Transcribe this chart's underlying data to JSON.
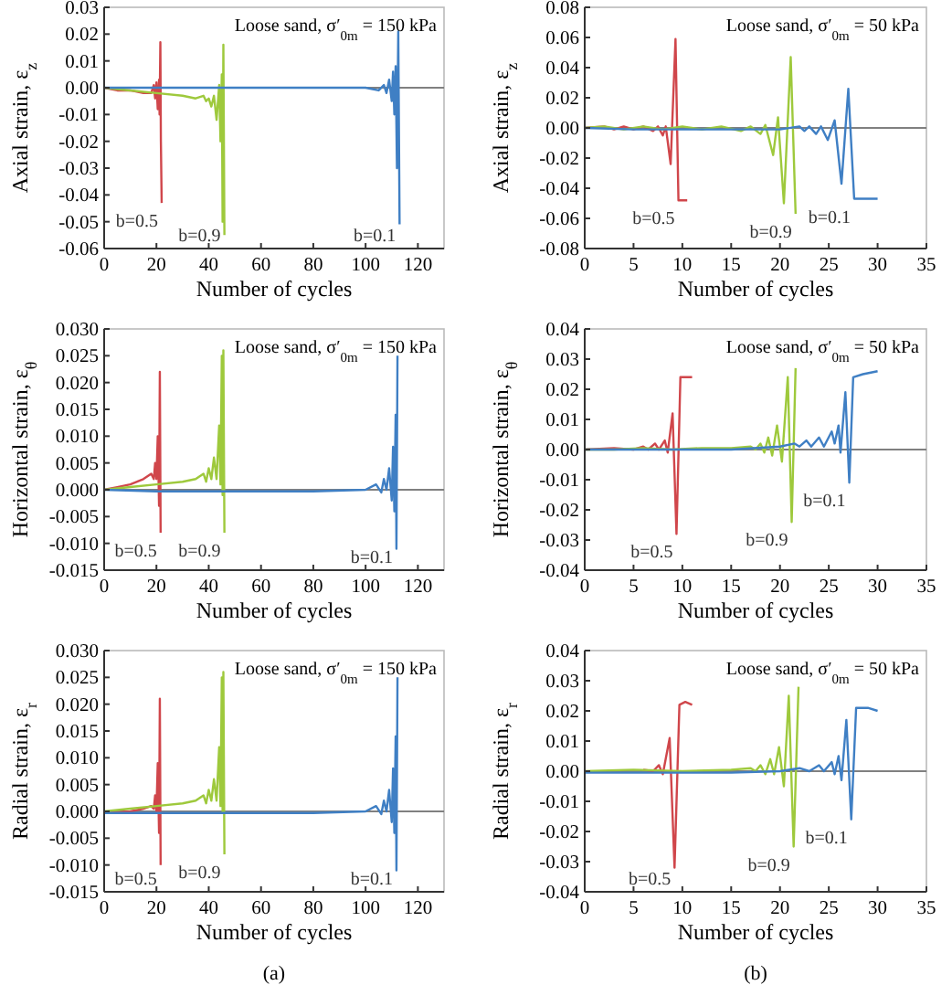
{
  "chart_data": [
    {
      "type": "line",
      "ylabel": "Axial strain, ε$_{z}$",
      "xlabel": "Number of cycles",
      "annotations": [
        "Loose sand, σ′$_{0m}$ = 150 kPa"
      ],
      "xlim": [
        0,
        130
      ],
      "xticks": [
        0,
        20,
        40,
        60,
        80,
        100,
        120
      ],
      "ylim": [
        -0.06,
        0.03
      ],
      "yticks": [
        {
          "value": -0.06,
          "label": "-0.06"
        },
        {
          "value": -0.05,
          "label": "-0.05"
        },
        {
          "value": -0.04,
          "label": "-0.04"
        },
        {
          "value": -0.03,
          "label": "-0.03"
        },
        {
          "value": -0.02,
          "label": "-0.02"
        },
        {
          "value": -0.01,
          "label": "-0.01"
        },
        {
          "value": 0,
          "label": "0.00"
        },
        {
          "value": 0.01,
          "label": "0.01"
        },
        {
          "value": 0.02,
          "label": "0.02"
        },
        {
          "value": 0.03,
          "label": "0.03"
        }
      ],
      "ref_lines": [
        {
          "axis": "y",
          "value": 0,
          "color": "#808080"
        }
      ],
      "grid": false,
      "legend": false,
      "series": [
        {
          "name": "b=0.5",
          "color": "#d0464b",
          "x": [
            0,
            5,
            10,
            15,
            18,
            19,
            19.5,
            20,
            20.5,
            21,
            21.2,
            21.5,
            21.7,
            22
          ],
          "values": [
            0,
            -0.001,
            -0.001,
            -0.002,
            -0.002,
            0.001,
            -0.004,
            0.002,
            -0.008,
            0.003,
            -0.01,
            0.017,
            -0.02,
            -0.043
          ]
        },
        {
          "name": "b=0.9",
          "color": "#9ec93c",
          "x": [
            0,
            10,
            20,
            30,
            35,
            38,
            39,
            40,
            41,
            42,
            43,
            44,
            44.5,
            45,
            45.3,
            45.6,
            46
          ],
          "values": [
            0,
            -0.001,
            -0.002,
            -0.003,
            -0.004,
            -0.003,
            -0.005,
            -0.004,
            -0.007,
            -0.003,
            -0.012,
            0.001,
            -0.02,
            0.005,
            -0.05,
            0.016,
            -0.055
          ]
        },
        {
          "name": "b=0.1",
          "color": "#3f7fc4",
          "x": [
            0,
            20,
            40,
            60,
            80,
            100,
            105,
            107,
            108,
            109,
            110,
            110.5,
            111,
            111.5,
            112,
            112.5,
            113
          ],
          "values": [
            0,
            0,
            0,
            0,
            0,
            0,
            -0.001,
            0.001,
            -0.002,
            0.003,
            -0.005,
            0.006,
            -0.01,
            0.008,
            -0.03,
            0.021,
            -0.051
          ]
        }
      ]
    },
    {
      "type": "line",
      "ylabel": "Axial strain, ε$_{z}$",
      "xlabel": "Number of cycles",
      "annotations": [
        "Loose sand, σ′$_{0m}$ = 50 kPa"
      ],
      "xlim": [
        0,
        35
      ],
      "xticks": [
        0,
        5,
        10,
        15,
        20,
        25,
        30,
        35
      ],
      "ylim": [
        -0.08,
        0.08
      ],
      "yticks": [
        {
          "value": -0.08,
          "label": "-0.08"
        },
        {
          "value": -0.06,
          "label": "-0.06"
        },
        {
          "value": -0.04,
          "label": "-0.04"
        },
        {
          "value": -0.02,
          "label": "-0.02"
        },
        {
          "value": 0,
          "label": "0.00"
        },
        {
          "value": 0.02,
          "label": "0.02"
        },
        {
          "value": 0.04,
          "label": "0.04"
        },
        {
          "value": 0.06,
          "label": "0.06"
        },
        {
          "value": 0.08,
          "label": "0.08"
        }
      ],
      "ref_lines": [
        {
          "axis": "y",
          "value": 0,
          "color": "#808080"
        }
      ],
      "grid": false,
      "legend": false,
      "series": [
        {
          "name": "b=0.5",
          "color": "#d0464b",
          "x": [
            0,
            2,
            3,
            4,
            5,
            6,
            7,
            7.5,
            8,
            8.3,
            8.8,
            9.3,
            9.6,
            10.5
          ],
          "values": [
            0,
            0.001,
            -0.001,
            0.001,
            -0.001,
            0.001,
            -0.002,
            0.001,
            -0.005,
            0.001,
            -0.024,
            0.059,
            -0.048,
            -0.048
          ]
        },
        {
          "name": "b=0.9",
          "color": "#9ec93c",
          "x": [
            0,
            2,
            4,
            6,
            8,
            10,
            12,
            14,
            16,
            17,
            18,
            18.5,
            19.3,
            19.8,
            20.4,
            21.1,
            21.6
          ],
          "values": [
            0,
            0.001,
            -0.001,
            0.001,
            -0.001,
            0.001,
            -0.001,
            0.001,
            -0.002,
            0.001,
            -0.004,
            0.002,
            -0.018,
            0.007,
            -0.05,
            0.047,
            -0.057
          ]
        },
        {
          "name": "b=0.1",
          "color": "#3f7fc4",
          "x": [
            0,
            5,
            10,
            15,
            20,
            22,
            22.5,
            23,
            23.7,
            24.2,
            24.9,
            25.6,
            26.3,
            27,
            27.6,
            30
          ],
          "values": [
            0,
            -0.001,
            -0.001,
            -0.001,
            -0.001,
            0.001,
            -0.002,
            0.001,
            -0.004,
            0.001,
            -0.008,
            0.005,
            -0.037,
            0.026,
            -0.047,
            -0.047
          ]
        }
      ]
    },
    {
      "type": "line",
      "ylabel": "Horizontal strain, ε$_{θ}$",
      "xlabel": "Number of cycles",
      "annotations": [
        "Loose sand, σ′$_{0m}$ = 150 kPa"
      ],
      "xlim": [
        0,
        130
      ],
      "xticks": [
        0,
        20,
        40,
        60,
        80,
        100,
        120
      ],
      "ylim": [
        -0.015,
        0.03
      ],
      "yticks": [
        {
          "value": -0.015,
          "label": "-0.015"
        },
        {
          "value": -0.01,
          "label": "-0.010"
        },
        {
          "value": -0.005,
          "label": "-0.005"
        },
        {
          "value": 0,
          "label": "0.000"
        },
        {
          "value": 0.005,
          "label": "0.005"
        },
        {
          "value": 0.01,
          "label": "0.010"
        },
        {
          "value": 0.015,
          "label": "0.015"
        },
        {
          "value": 0.02,
          "label": "0.020"
        },
        {
          "value": 0.025,
          "label": "0.025"
        },
        {
          "value": 0.03,
          "label": "0.030"
        }
      ],
      "ref_lines": [
        {
          "axis": "y",
          "value": 0,
          "color": "#808080"
        }
      ],
      "grid": false,
      "legend": false,
      "series": [
        {
          "name": "b=0.5",
          "color": "#d0464b",
          "x": [
            0,
            5,
            10,
            15,
            18,
            19,
            19.5,
            20,
            20.5,
            21,
            21.3,
            21.6
          ],
          "values": [
            0,
            0.0005,
            0.001,
            0.002,
            0.003,
            0.002,
            0.005,
            0.002,
            0.01,
            -0.003,
            0.022,
            -0.008
          ]
        },
        {
          "name": "b=0.9",
          "color": "#9ec93c",
          "x": [
            0,
            10,
            20,
            30,
            35,
            38,
            39,
            40,
            41,
            42,
            43,
            44,
            44.5,
            45,
            45.3,
            45.6,
            46
          ],
          "values": [
            0,
            0.0005,
            0.001,
            0.0015,
            0.002,
            0.003,
            0.0015,
            0.004,
            0.002,
            0.006,
            0.002,
            0.012,
            0.001,
            0.025,
            -0.001,
            0.026,
            -0.008
          ]
        },
        {
          "name": "b=0.1",
          "color": "#3f7fc4",
          "x": [
            0,
            20,
            40,
            60,
            80,
            100,
            104,
            106,
            107,
            108,
            109,
            110,
            110.5,
            111,
            111.5,
            111.8,
            112.2
          ],
          "values": [
            0,
            -0.0003,
            -0.0003,
            -0.0003,
            -0.0003,
            0,
            0.001,
            -0.0005,
            0.002,
            0,
            0.004,
            -0.002,
            0.008,
            -0.004,
            0.014,
            -0.011,
            0.025
          ]
        }
      ]
    },
    {
      "type": "line",
      "ylabel": "Horizontal strain, ε$_{θ}$",
      "xlabel": "Number of cycles",
      "annotations": [
        "Loose sand, σ′$_{0m}$ = 50 kPa"
      ],
      "xlim": [
        0,
        35
      ],
      "xticks": [
        0,
        5,
        10,
        15,
        20,
        25,
        30,
        35
      ],
      "ylim": [
        -0.04,
        0.04
      ],
      "yticks": [
        {
          "value": -0.04,
          "label": "-0.04"
        },
        {
          "value": -0.03,
          "label": "-0.03"
        },
        {
          "value": -0.02,
          "label": "-0.02"
        },
        {
          "value": -0.01,
          "label": "-0.01"
        },
        {
          "value": 0,
          "label": "0.00"
        },
        {
          "value": 0.01,
          "label": "0.01"
        },
        {
          "value": 0.02,
          "label": "0.02"
        },
        {
          "value": 0.03,
          "label": "0.03"
        },
        {
          "value": 0.04,
          "label": "0.04"
        }
      ],
      "ref_lines": [
        {
          "axis": "y",
          "value": 0,
          "color": "#808080"
        }
      ],
      "grid": false,
      "legend": false,
      "series": [
        {
          "name": "b=0.5",
          "color": "#d0464b",
          "x": [
            0,
            3,
            5,
            6,
            6.5,
            7.2,
            7.6,
            8.2,
            8.5,
            9,
            9.4,
            9.8,
            10.5,
            11
          ],
          "values": [
            0,
            0.0005,
            0,
            0.001,
            0,
            0.002,
            0,
            0.003,
            -0.001,
            0.012,
            -0.028,
            0.024,
            0.024,
            0.024
          ]
        },
        {
          "name": "b=0.9",
          "color": "#9ec93c",
          "x": [
            0,
            3,
            6,
            9,
            12,
            15,
            17,
            17.5,
            18,
            18.4,
            18.8,
            19.2,
            19.7,
            20.2,
            20.8,
            21.2,
            21.6
          ],
          "values": [
            0,
            0,
            0.0005,
            0,
            0.0005,
            0.0005,
            0.001,
            0,
            0.002,
            -0.001,
            0.004,
            -0.002,
            0.008,
            -0.004,
            0.024,
            -0.024,
            0.027
          ]
        },
        {
          "name": "b=0.1",
          "color": "#3f7fc4",
          "x": [
            0,
            5,
            10,
            15,
            20,
            21.5,
            22,
            22.7,
            23.2,
            24,
            24.5,
            25.3,
            25.6,
            26,
            26.2,
            26.7,
            27.1,
            27.5,
            28.5,
            30
          ],
          "values": [
            0,
            0,
            0,
            0,
            0.001,
            0.002,
            0.001,
            0.003,
            0.001,
            0.004,
            0.001,
            0.006,
            0.002,
            0.008,
            -0.001,
            0.019,
            -0.011,
            0.024,
            0.025,
            0.026
          ]
        }
      ]
    },
    {
      "type": "line",
      "ylabel": "Radial strain, ε$_{r}$",
      "xlabel": "Number of cycles",
      "annotations": [
        "Loose sand, σ′$_{0m}$ = 150 kPa",
        "(a)"
      ],
      "xlim": [
        0,
        130
      ],
      "xticks": [
        0,
        20,
        40,
        60,
        80,
        100,
        120
      ],
      "ylim": [
        -0.015,
        0.03
      ],
      "yticks": [
        {
          "value": -0.015,
          "label": "-0.015"
        },
        {
          "value": -0.01,
          "label": "-0.010"
        },
        {
          "value": -0.005,
          "label": "-0.005"
        },
        {
          "value": 0,
          "label": "0.000"
        },
        {
          "value": 0.005,
          "label": "0.005"
        },
        {
          "value": 0.01,
          "label": "0.010"
        },
        {
          "value": 0.015,
          "label": "0.015"
        },
        {
          "value": 0.02,
          "label": "0.020"
        },
        {
          "value": 0.025,
          "label": "0.025"
        },
        {
          "value": 0.03,
          "label": "0.030"
        }
      ],
      "ref_lines": [
        {
          "axis": "y",
          "value": 0,
          "color": "#808080"
        }
      ],
      "grid": false,
      "legend": false,
      "series": [
        {
          "name": "b=0.5",
          "color": "#d0464b",
          "x": [
            0,
            10,
            15,
            18,
            19,
            19.5,
            20,
            20.5,
            21,
            21.3,
            21.6
          ],
          "values": [
            -0.0003,
            0,
            0.0005,
            0.001,
            0.0005,
            0.003,
            0,
            0.009,
            -0.004,
            0.021,
            -0.01
          ]
        },
        {
          "name": "b=0.9",
          "color": "#9ec93c",
          "x": [
            0,
            10,
            20,
            30,
            35,
            38,
            39,
            40,
            41,
            42,
            43,
            44,
            44.5,
            45,
            45.3,
            45.6,
            46
          ],
          "values": [
            0,
            0.0005,
            0.001,
            0.0015,
            0.002,
            0.003,
            0.0015,
            0.004,
            0.002,
            0.006,
            0.002,
            0.012,
            0.001,
            0.025,
            0,
            0.026,
            -0.008
          ]
        },
        {
          "name": "b=0.1",
          "color": "#3f7fc4",
          "x": [
            0,
            20,
            40,
            60,
            80,
            100,
            104,
            106,
            107,
            108,
            109,
            110,
            110.5,
            111,
            111.5,
            111.8,
            112.2
          ],
          "values": [
            -0.0003,
            -0.0003,
            -0.0003,
            -0.0003,
            -0.0003,
            0,
            0.001,
            -0.0005,
            0.002,
            0,
            0.004,
            -0.002,
            0.008,
            -0.004,
            0.014,
            -0.011,
            0.025
          ]
        }
      ]
    },
    {
      "type": "line",
      "ylabel": "Radial strain, ε$_{r}$",
      "xlabel": "Number of cycles",
      "annotations": [
        "Loose sand, σ′$_{0m}$ = 50 kPa",
        "(b)"
      ],
      "xlim": [
        0,
        35
      ],
      "xticks": [
        0,
        5,
        10,
        15,
        20,
        25,
        30,
        35
      ],
      "ylim": [
        -0.04,
        0.04
      ],
      "yticks": [
        {
          "value": -0.04,
          "label": "-0.04"
        },
        {
          "value": -0.03,
          "label": "-0.03"
        },
        {
          "value": -0.02,
          "label": "-0.02"
        },
        {
          "value": -0.01,
          "label": "-0.01"
        },
        {
          "value": 0,
          "label": "0.00"
        },
        {
          "value": 0.01,
          "label": "0.01"
        },
        {
          "value": 0.02,
          "label": "0.02"
        },
        {
          "value": 0.03,
          "label": "0.03"
        },
        {
          "value": 0.04,
          "label": "0.04"
        }
      ],
      "ref_lines": [
        {
          "axis": "y",
          "value": 0,
          "color": "#808080"
        }
      ],
      "grid": false,
      "legend": false,
      "series": [
        {
          "name": "b=0.5",
          "color": "#d0464b",
          "x": [
            6,
            7,
            7.6,
            8,
            8.7,
            9.2,
            9.7,
            10.3,
            11
          ],
          "values": [
            0.0005,
            0,
            0.002,
            -0.001,
            0.011,
            -0.032,
            0.022,
            0.023,
            0.022
          ]
        },
        {
          "name": "b=0.9",
          "color": "#9ec93c",
          "x": [
            0,
            5,
            10,
            15,
            17,
            17.5,
            18,
            18.5,
            19,
            19.4,
            19.9,
            20.4,
            20.9,
            21.4,
            21.9
          ],
          "values": [
            0,
            0.0005,
            0,
            0.0005,
            0.001,
            0,
            0.002,
            -0.001,
            0.004,
            -0.001,
            0.008,
            -0.005,
            0.025,
            -0.025,
            0.028
          ]
        },
        {
          "name": "b=0.1",
          "color": "#3f7fc4",
          "x": [
            0,
            5,
            10,
            15,
            20,
            22,
            23,
            24,
            24.5,
            25.3,
            25.6,
            26,
            26.3,
            26.8,
            27.3,
            27.8,
            29,
            30
          ],
          "values": [
            -0.0005,
            -0.0005,
            -0.0005,
            -0.0005,
            0,
            0.001,
            0,
            0.002,
            0,
            0.003,
            -0.001,
            0.005,
            -0.003,
            0.017,
            -0.016,
            0.021,
            0.021,
            0.02
          ]
        }
      ]
    }
  ]
}
